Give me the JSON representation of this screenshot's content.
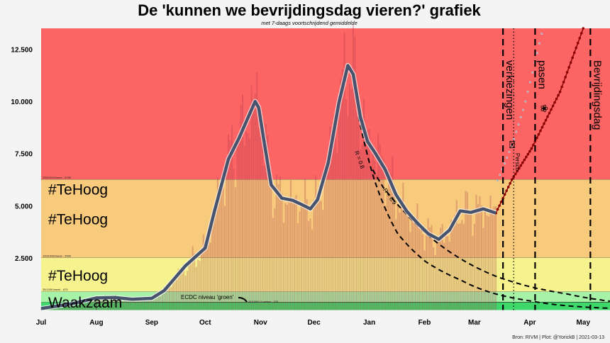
{
  "chart_data": {
    "type": "line",
    "title": "De 'kunnen we bevrijdingsdag vieren?' grafiek",
    "subtitle": "met 7-daags voortschrijdend gemiddelde",
    "caption": "Bron: RIVM | Plot: @YorickB  |  2021-03-13",
    "xlim": [
      "2020-07-01",
      "2021-05-16"
    ],
    "ylim": [
      0,
      13500
    ],
    "grid": false,
    "x_ticks": [
      {
        "date": "2020-07-01",
        "label": "Jul"
      },
      {
        "date": "2020-08-01",
        "label": "Aug"
      },
      {
        "date": "2020-09-01",
        "label": "Sep"
      },
      {
        "date": "2020-10-01",
        "label": "Oct"
      },
      {
        "date": "2020-11-01",
        "label": "Nov"
      },
      {
        "date": "2020-12-01",
        "label": "Dec"
      },
      {
        "date": "2021-01-01",
        "label": "Jan"
      },
      {
        "date": "2021-02-01",
        "label": "Feb"
      },
      {
        "date": "2021-03-01",
        "label": "Mar"
      },
      {
        "date": "2021-04-01",
        "label": "Apr"
      },
      {
        "date": "2021-05-01",
        "label": "May"
      }
    ],
    "y_ticks": [
      {
        "value": 2500,
        "label": "2.500"
      },
      {
        "value": 5000,
        "label": "5.000"
      },
      {
        "value": 7500,
        "label": "7.500"
      },
      {
        "value": 10000,
        "label": "10.000"
      },
      {
        "value": 12500,
        "label": "12.500"
      }
    ],
    "zones": [
      {
        "from": 6250,
        "to": 13500,
        "color": "#fd6464",
        "label": "#TeHoog",
        "threshold_label": "250/100K/week - 6250"
      },
      {
        "from": 2500,
        "to": 6250,
        "color": "#f8ca7c",
        "label": "#TeHoog",
        "threshold_label": "100/100K/week - 2500"
      },
      {
        "from": 875,
        "to": 2500,
        "color": "#f6f28e",
        "label": "#TeHoog",
        "threshold_label": "35/100K/week - 875"
      },
      {
        "from": 375,
        "to": 875,
        "color": "#a6f2a6",
        "label": "Waakzaam",
        "threshold_label": ""
      },
      {
        "from": 0,
        "to": 375,
        "color": "#3ed86a",
        "label": "",
        "threshold_label": ""
      }
    ],
    "ecdc": {
      "value": 375,
      "start": "2020-08-01",
      "label": "ECDC niveau 'groen'",
      "threshold_label": "25/100K/ 2 weken - 375"
    },
    "moving_average": {
      "color": "#48546e",
      "points": [
        [
          "2020-07-01",
          70
        ],
        [
          "2020-07-18",
          300
        ],
        [
          "2020-08-01",
          580
        ],
        [
          "2020-08-11",
          600
        ],
        [
          "2020-08-21",
          520
        ],
        [
          "2020-09-01",
          560
        ],
        [
          "2020-09-08",
          935
        ],
        [
          "2020-09-20",
          2125
        ],
        [
          "2020-10-01",
          2975
        ],
        [
          "2020-10-06",
          4680
        ],
        [
          "2020-10-14",
          7230
        ],
        [
          "2020-10-20",
          8250
        ],
        [
          "2020-10-29",
          10000
        ],
        [
          "2020-10-31",
          9700
        ],
        [
          "2020-11-03",
          8080
        ],
        [
          "2020-11-07",
          6000
        ],
        [
          "2020-11-13",
          5360
        ],
        [
          "2020-11-19",
          5260
        ],
        [
          "2020-11-25",
          5020
        ],
        [
          "2020-11-29",
          4850
        ],
        [
          "2020-12-03",
          5290
        ],
        [
          "2020-12-09",
          7060
        ],
        [
          "2020-12-15",
          9950
        ],
        [
          "2020-12-20",
          11720
        ],
        [
          "2020-12-23",
          11300
        ],
        [
          "2020-12-27",
          9270
        ],
        [
          "2020-12-31",
          8080
        ],
        [
          "2021-01-04",
          7570
        ],
        [
          "2021-01-10",
          6720
        ],
        [
          "2021-01-16",
          5530
        ],
        [
          "2021-01-22",
          4740
        ],
        [
          "2021-01-28",
          4170
        ],
        [
          "2021-02-03",
          3660
        ],
        [
          "2021-02-09",
          3390
        ],
        [
          "2021-02-15",
          3830
        ],
        [
          "2021-02-21",
          4750
        ],
        [
          "2021-02-27",
          4680
        ],
        [
          "2021-03-06",
          4850
        ],
        [
          "2021-03-13",
          4650
        ]
      ]
    },
    "daily_bars": {
      "color": "#a83c4c",
      "end": "2021-03-13"
    },
    "projections": [
      {
        "label": "",
        "color": "#8b0000",
        "style": "dotted-markers",
        "points": [
          [
            "2021-03-13",
            4650
          ],
          [
            "2021-03-22",
            6250
          ],
          [
            "2021-04-02",
            7740
          ],
          [
            "2021-04-18",
            10460
          ],
          [
            "2021-05-01",
            13500
          ]
        ]
      },
      {
        "label": "",
        "color": "#8a9ab0",
        "style": "dots",
        "points": [
          [
            "2021-03-14",
            6200
          ],
          [
            "2021-03-22",
            7900
          ],
          [
            "2021-03-29",
            9780
          ],
          [
            "2021-04-08",
            13350
          ]
        ]
      },
      {
        "label": "R = 0.8",
        "color": "#000000",
        "style": "dashed",
        "points": [
          [
            "2020-12-26",
            9270
          ],
          [
            "2021-01-04",
            6200
          ],
          [
            "2021-01-17",
            3660
          ],
          [
            "2021-02-02",
            2300
          ],
          [
            "2021-02-21",
            1450
          ],
          [
            "2021-03-13",
            770
          ],
          [
            "2021-04-02",
            430
          ],
          [
            "2021-05-16",
            85
          ]
        ]
      },
      {
        "label": "R = 0.9",
        "color": "#000000",
        "style": "dashed",
        "points": [
          [
            "2021-01-03",
            6720
          ],
          [
            "2021-01-09",
            5860
          ],
          [
            "2021-01-21",
            4680
          ],
          [
            "2021-02-02",
            3660
          ],
          [
            "2021-02-21",
            2470
          ],
          [
            "2021-03-13",
            1620
          ],
          [
            "2021-04-02",
            1100
          ],
          [
            "2021-04-22",
            770
          ],
          [
            "2021-05-16",
            425
          ]
        ]
      }
    ],
    "events": [
      {
        "date": "2021-03-17",
        "label": "verkiezingen",
        "icon": "ballot-box-icon",
        "style": "dashed"
      },
      {
        "date": "2021-03-23",
        "label": "Persco",
        "icon": "",
        "style": "dotted"
      },
      {
        "date": "2021-04-04",
        "label": "pasen",
        "icon": "easter-chick-icon",
        "style": "dashed"
      },
      {
        "date": "2021-05-05",
        "label": "Bevrijdingsdag",
        "icon": "",
        "style": "dashed"
      }
    ]
  }
}
